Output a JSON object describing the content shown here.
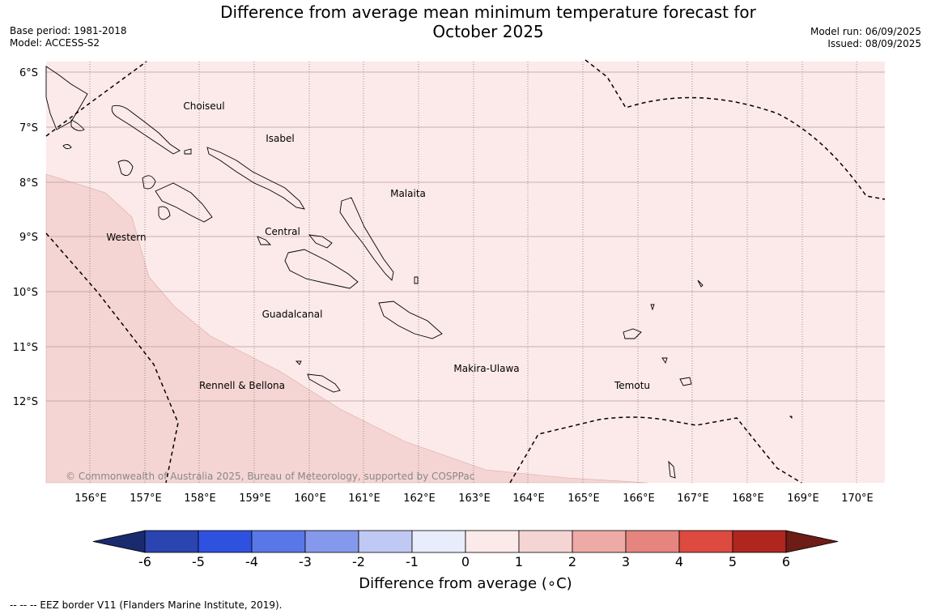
{
  "header": {
    "title_line1": "Difference from average mean minimum temperature forecast for",
    "title_line2": "October 2025",
    "base_period": "Base period: 1981-2018",
    "model": "Model: ACCESS-S2",
    "model_run": "Model run: 06/09/2025",
    "issued": "Issued: 08/09/2025"
  },
  "map": {
    "lat_labels": [
      "6°S",
      "7°S",
      "8°S",
      "9°S",
      "10°S",
      "11°S",
      "12°S"
    ],
    "lon_labels": [
      "156°E",
      "157°E",
      "158°E",
      "159°E",
      "160°E",
      "161°E",
      "162°E",
      "163°E",
      "164°E",
      "165°E",
      "166°E",
      "167°E",
      "168°E",
      "169°E",
      "170°E"
    ],
    "regions": [
      "Choiseul",
      "Isabel",
      "Malaita",
      "Western",
      "Central",
      "Guadalcanal",
      "Makira-Ulawa",
      "Rennell & Bellona",
      "Temotu"
    ],
    "copyright": "© Commonwealth of Australia 2025, Bureau of Meteorology, supported by COSPPac",
    "fill_colors": {
      "anomaly_0_to_1": "#fbeae9",
      "anomaly_1_to_2": "#f5d5d3"
    }
  },
  "colorbar": {
    "label": "Difference from average (∘C)",
    "ticks": [
      "-6",
      "-5",
      "-4",
      "-3",
      "-2",
      "-1",
      "0",
      "1",
      "2",
      "3",
      "4",
      "5",
      "6"
    ],
    "colors": [
      "#1a2a6e",
      "#2a44b0",
      "#2f51e0",
      "#5977e6",
      "#8599ec",
      "#c0c9f3",
      "#e8ecfb",
      "#fbeae9",
      "#f5d5d3",
      "#eeaaa7",
      "#e6847f",
      "#dd4a40",
      "#b0261f",
      "#6e1c16"
    ]
  },
  "footer": {
    "eez_note": "--  --  -- EEZ border V11 (Flanders Marine Institute, 2019)."
  }
}
